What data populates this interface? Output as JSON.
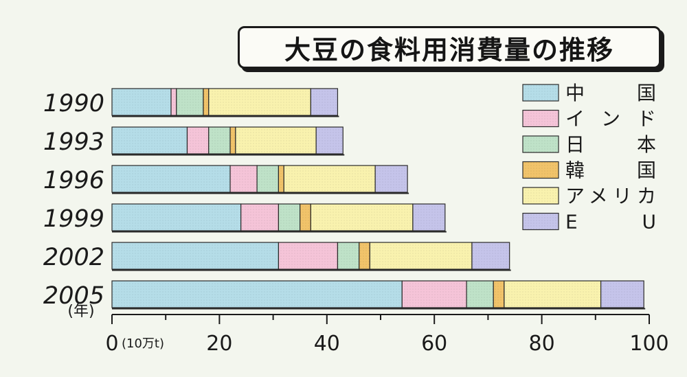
{
  "title": "大豆の食料用消費量の推移",
  "unit_label": "(10万t)",
  "year_unit": "(年)",
  "colors": {
    "china": "#b5dde8",
    "india": "#f5c4d8",
    "japan": "#bfe2c8",
    "korea": "#f1c36a",
    "usa": "#f9f2ae",
    "eu": "#c5c4ea"
  },
  "chart_data": {
    "type": "bar",
    "orientation": "horizontal",
    "stacked": true,
    "title": "大豆の食料用消費量の推移",
    "xlabel": "(10万t)",
    "ylabel": "(年)",
    "xlim": [
      0,
      100
    ],
    "xticks": [
      "0",
      "20",
      "40",
      "60",
      "80",
      "100"
    ],
    "categories": [
      "1990",
      "1993",
      "1996",
      "1999",
      "2002",
      "2005"
    ],
    "legend_position": "right",
    "series": [
      {
        "key": "china",
        "name": "中　　国",
        "values": [
          11,
          14,
          22,
          24,
          31,
          54
        ]
      },
      {
        "key": "india",
        "name": "イ ン ド",
        "values": [
          1,
          4,
          5,
          7,
          11,
          12
        ]
      },
      {
        "key": "japan",
        "name": "日　　本",
        "values": [
          5,
          4,
          4,
          4,
          4,
          5
        ]
      },
      {
        "key": "korea",
        "name": "韓　　国",
        "values": [
          1,
          1,
          1,
          2,
          2,
          2
        ]
      },
      {
        "key": "usa",
        "name": "アメリカ",
        "values": [
          19,
          15,
          17,
          19,
          19,
          18
        ]
      },
      {
        "key": "eu",
        "name": "E　　U",
        "values": [
          5,
          5,
          6,
          6,
          7,
          8
        ]
      }
    ]
  }
}
